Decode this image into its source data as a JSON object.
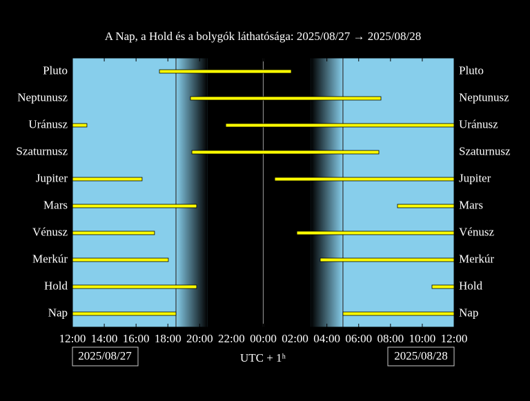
{
  "chart_data": {
    "type": "range-bar",
    "title": "A Nap, a Hold és a bolygók láthatósága: 2025/08/27 → 2025/08/28",
    "xlabel": "UTC + 1ʰ",
    "date_labels": [
      "2025/08/27",
      "2025/08/28"
    ],
    "categories": [
      "Pluto",
      "Neptunusz",
      "Uránusz",
      "Szaturnusz",
      "Jupiter",
      "Mars",
      "Vénusz",
      "Merkúr",
      "Hold",
      "Nap"
    ],
    "intervals": [
      [
        [
          17.47,
          25.76
        ]
      ],
      [
        [
          19.42,
          31.4
        ]
      ],
      [
        [
          12,
          12.91
        ],
        [
          21.64,
          36
        ]
      ],
      [
        [
          19.51,
          31.27
        ]
      ],
      [
        [
          12,
          16.38
        ],
        [
          24.72,
          36
        ]
      ],
      [
        [
          12,
          19.81
        ],
        [
          32.44,
          36
        ]
      ],
      [
        [
          12,
          17.16
        ],
        [
          26.11,
          36
        ]
      ],
      [
        [
          12,
          18.03
        ],
        [
          27.58,
          36
        ]
      ],
      [
        [
          12,
          19.81
        ],
        [
          34.61,
          36
        ]
      ],
      [
        [
          12,
          18.51
        ],
        [
          29.01,
          36
        ]
      ]
    ],
    "xlim": [
      12,
      36
    ],
    "xticks": [
      {
        "value": 12,
        "label": "12:00"
      },
      {
        "value": 14,
        "label": "14:00"
      },
      {
        "value": 16,
        "label": "16:00"
      },
      {
        "value": 18,
        "label": "18:00"
      },
      {
        "value": 20,
        "label": "20:00"
      },
      {
        "value": 22,
        "label": "22:00"
      },
      {
        "value": 24,
        "label": "00:00"
      },
      {
        "value": 26,
        "label": "02:00"
      },
      {
        "value": 28,
        "label": "04:00"
      },
      {
        "value": 30,
        "label": "06:00"
      },
      {
        "value": 32,
        "label": "08:00"
      },
      {
        "value": 34,
        "label": "10:00"
      },
      {
        "value": 36,
        "label": "12:00"
      }
    ],
    "color": "#ffff00",
    "day_color": "#87ceeb",
    "night_color": "#000000",
    "night": {
      "sunset": 18.51,
      "dark_start": 20.5,
      "dark_end": 27.0,
      "sunrise": 29.01
    },
    "day_boundary": 24
  }
}
